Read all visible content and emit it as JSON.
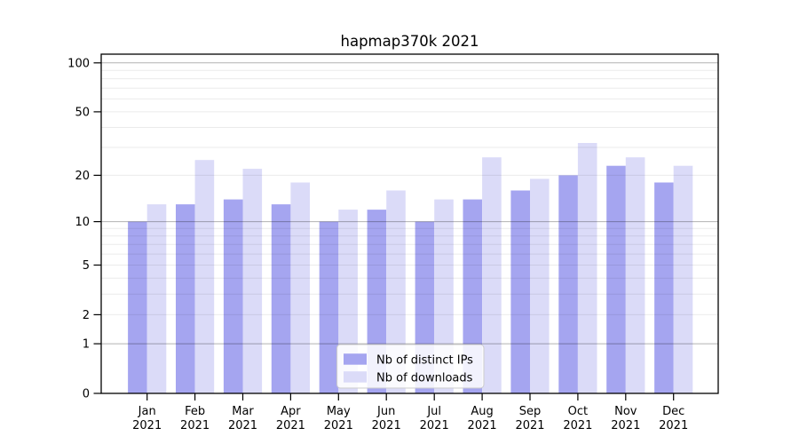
{
  "chart_data": {
    "type": "bar",
    "title": "hapmap370k 2021",
    "categories": [
      "Jan\n2021",
      "Feb\n2021",
      "Mar\n2021",
      "Apr\n2021",
      "May\n2021",
      "Jun\n2021",
      "Jul\n2021",
      "Aug\n2021",
      "Sep\n2021",
      "Oct\n2021",
      "Nov\n2021",
      "Dec\n2021"
    ],
    "series": [
      {
        "name": "Nb of distinct IPs",
        "color": "#a5a5f0",
        "values": [
          10,
          13,
          14,
          13,
          10,
          12,
          10,
          14,
          16,
          20,
          23,
          18
        ]
      },
      {
        "name": "Nb of downloads",
        "color": "#dbdbf8",
        "values": [
          13,
          25,
          22,
          18,
          12,
          16,
          14,
          26,
          19,
          32,
          26,
          23
        ]
      }
    ],
    "xlabel": "",
    "ylabel": "",
    "yscale": "log10(1+y)",
    "ylim": [
      0,
      113
    ],
    "yticks": [
      0,
      1,
      2,
      5,
      10,
      20,
      50,
      100
    ],
    "major_gridlines": [
      1,
      10,
      100
    ],
    "minor_gridlines": [
      2,
      3,
      4,
      5,
      6,
      7,
      8,
      9,
      20,
      30,
      40,
      50,
      60,
      70,
      80,
      90
    ],
    "grid": true,
    "legend_position": "lower center",
    "colors": {
      "spine": "#000000",
      "major_grid": "rgba(0,0,0,0.30)",
      "minor_grid": "rgba(0,0,0,0.08)",
      "legend_border": "#cccccc",
      "legend_bg": "rgba(255,255,255,0.85)"
    }
  }
}
